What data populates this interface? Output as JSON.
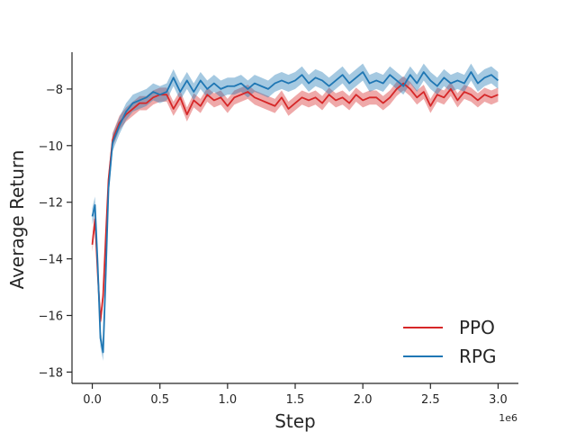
{
  "chart_data": {
    "type": "line",
    "title": "",
    "xlabel": "Step",
    "ylabel": "Average Return",
    "x_offset_label": "1e6",
    "xlim": [
      -0.15,
      3.15
    ],
    "ylim": [
      -18.4,
      -6.7
    ],
    "xticks": [
      0.0,
      0.5,
      1.0,
      1.5,
      2.0,
      2.5,
      3.0
    ],
    "xtick_labels": [
      "0.0",
      "0.5",
      "1.0",
      "1.5",
      "2.0",
      "2.5",
      "3.0"
    ],
    "yticks": [
      -18,
      -16,
      -14,
      -12,
      -10,
      -8
    ],
    "ytick_labels": [
      "−18",
      "−16",
      "−14",
      "−12",
      "−10",
      "−8"
    ],
    "grid": false,
    "legend_position": "bottom-right",
    "x": [
      0.0,
      0.02,
      0.04,
      0.06,
      0.08,
      0.1,
      0.12,
      0.15,
      0.2,
      0.25,
      0.3,
      0.35,
      0.4,
      0.45,
      0.5,
      0.55,
      0.6,
      0.65,
      0.7,
      0.75,
      0.8,
      0.85,
      0.9,
      0.95,
      1.0,
      1.05,
      1.1,
      1.15,
      1.2,
      1.25,
      1.3,
      1.35,
      1.4,
      1.45,
      1.5,
      1.55,
      1.6,
      1.65,
      1.7,
      1.75,
      1.8,
      1.85,
      1.9,
      1.95,
      2.0,
      2.05,
      2.1,
      2.15,
      2.2,
      2.25,
      2.3,
      2.35,
      2.4,
      2.45,
      2.5,
      2.55,
      2.6,
      2.65,
      2.7,
      2.75,
      2.8,
      2.85,
      2.9,
      2.95,
      3.0
    ],
    "series": [
      {
        "name": "PPO",
        "color": "#d62728",
        "values": [
          -13.5,
          -12.6,
          -14.5,
          -16.2,
          -15.3,
          -13.2,
          -11.2,
          -9.8,
          -9.2,
          -8.9,
          -8.7,
          -8.5,
          -8.5,
          -8.3,
          -8.2,
          -8.2,
          -8.7,
          -8.3,
          -8.9,
          -8.4,
          -8.6,
          -8.2,
          -8.4,
          -8.3,
          -8.6,
          -8.3,
          -8.2,
          -8.1,
          -8.3,
          -8.4,
          -8.5,
          -8.6,
          -8.3,
          -8.7,
          -8.5,
          -8.3,
          -8.4,
          -8.3,
          -8.5,
          -8.2,
          -8.4,
          -8.3,
          -8.5,
          -8.2,
          -8.4,
          -8.3,
          -8.3,
          -8.5,
          -8.3,
          -8.0,
          -7.8,
          -8.0,
          -8.3,
          -8.1,
          -8.6,
          -8.2,
          -8.3,
          -8.0,
          -8.4,
          -8.1,
          -8.2,
          -8.4,
          -8.2,
          -8.3,
          -8.2
        ],
        "band": 0.25
      },
      {
        "name": "RPG",
        "color": "#1f77b4",
        "values": [
          -12.5,
          -12.1,
          -14.2,
          -16.8,
          -17.3,
          -14.5,
          -11.5,
          -9.9,
          -9.3,
          -8.8,
          -8.5,
          -8.4,
          -8.3,
          -8.1,
          -8.2,
          -8.1,
          -7.6,
          -8.1,
          -7.7,
          -8.1,
          -7.7,
          -8.0,
          -7.8,
          -8.0,
          -7.9,
          -7.9,
          -7.8,
          -8.0,
          -7.8,
          -7.9,
          -8.0,
          -7.8,
          -7.7,
          -7.8,
          -7.7,
          -7.5,
          -7.8,
          -7.6,
          -7.7,
          -7.9,
          -7.7,
          -7.5,
          -7.8,
          -7.6,
          -7.4,
          -7.8,
          -7.7,
          -7.8,
          -7.5,
          -7.7,
          -7.9,
          -7.5,
          -7.8,
          -7.4,
          -7.7,
          -7.9,
          -7.6,
          -7.8,
          -7.7,
          -7.8,
          -7.4,
          -7.8,
          -7.6,
          -7.5,
          -7.7
        ],
        "band": 0.3
      }
    ]
  }
}
